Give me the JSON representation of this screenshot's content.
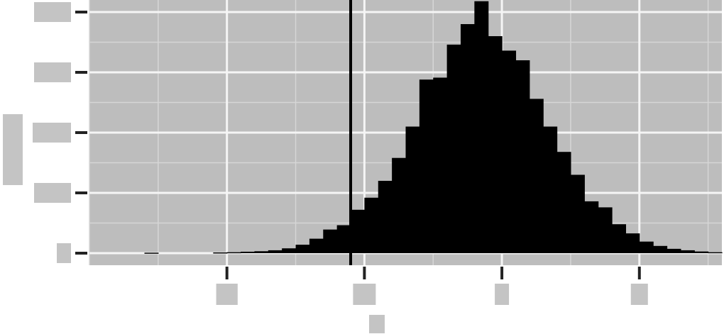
{
  "chart_data": {
    "type": "bar",
    "title": "",
    "xlabel": "",
    "ylabel": "",
    "xlim": [
      -2.0,
      2.6
    ],
    "ylim": [
      -50,
      1050
    ],
    "x_ticks": [
      -1,
      0,
      1,
      2
    ],
    "y_ticks": [
      0,
      250,
      500,
      750,
      1000
    ],
    "tick_labels_visible": false,
    "grid": true,
    "legend": "none",
    "vertical_line_x": -0.1,
    "bin_width": 0.1,
    "bins": [
      {
        "x0": -1.6,
        "x1": -1.5,
        "count": 2
      },
      {
        "x0": -1.1,
        "x1": -1.0,
        "count": 3
      },
      {
        "x0": -1.0,
        "x1": -0.9,
        "count": 4
      },
      {
        "x0": -0.9,
        "x1": -0.8,
        "count": 6
      },
      {
        "x0": -0.8,
        "x1": -0.7,
        "count": 8
      },
      {
        "x0": -0.7,
        "x1": -0.6,
        "count": 12
      },
      {
        "x0": -0.6,
        "x1": -0.5,
        "count": 20
      },
      {
        "x0": -0.5,
        "x1": -0.4,
        "count": 35
      },
      {
        "x0": -0.4,
        "x1": -0.3,
        "count": 60
      },
      {
        "x0": -0.3,
        "x1": -0.2,
        "count": 98
      },
      {
        "x0": -0.2,
        "x1": -0.1,
        "count": 116
      },
      {
        "x0": -0.1,
        "x1": 0.0,
        "count": 180
      },
      {
        "x0": 0.0,
        "x1": 0.1,
        "count": 230
      },
      {
        "x0": 0.1,
        "x1": 0.2,
        "count": 300
      },
      {
        "x0": 0.2,
        "x1": 0.3,
        "count": 395
      },
      {
        "x0": 0.3,
        "x1": 0.4,
        "count": 525
      },
      {
        "x0": 0.4,
        "x1": 0.5,
        "count": 720
      },
      {
        "x0": 0.5,
        "x1": 0.6,
        "count": 728
      },
      {
        "x0": 0.6,
        "x1": 0.7,
        "count": 865
      },
      {
        "x0": 0.7,
        "x1": 0.8,
        "count": 950
      },
      {
        "x0": 0.8,
        "x1": 0.9,
        "count": 1045
      },
      {
        "x0": 0.9,
        "x1": 1.0,
        "count": 900
      },
      {
        "x0": 1.0,
        "x1": 1.1,
        "count": 840
      },
      {
        "x0": 1.1,
        "x1": 1.2,
        "count": 800
      },
      {
        "x0": 1.2,
        "x1": 1.3,
        "count": 640
      },
      {
        "x0": 1.3,
        "x1": 1.4,
        "count": 525
      },
      {
        "x0": 1.4,
        "x1": 1.5,
        "count": 420
      },
      {
        "x0": 1.5,
        "x1": 1.6,
        "count": 325
      },
      {
        "x0": 1.6,
        "x1": 1.7,
        "count": 215
      },
      {
        "x0": 1.7,
        "x1": 1.8,
        "count": 190
      },
      {
        "x0": 1.8,
        "x1": 1.9,
        "count": 120
      },
      {
        "x0": 1.9,
        "x1": 2.0,
        "count": 82
      },
      {
        "x0": 2.0,
        "x1": 2.1,
        "count": 48
      },
      {
        "x0": 2.1,
        "x1": 2.2,
        "count": 30
      },
      {
        "x0": 2.2,
        "x1": 2.3,
        "count": 18
      },
      {
        "x0": 2.3,
        "x1": 2.4,
        "count": 12
      },
      {
        "x0": 2.4,
        "x1": 2.5,
        "count": 7
      },
      {
        "x0": 2.5,
        "x1": 2.6,
        "count": 4
      }
    ],
    "colors": {
      "panel": "#bdbdbd",
      "grid_major": "#f5f5f5",
      "grid_minor": "#d6d6d6",
      "bars": "#000000",
      "vline": "#000000",
      "ticks": "#222222",
      "redaction": "#c4c4c4"
    }
  }
}
